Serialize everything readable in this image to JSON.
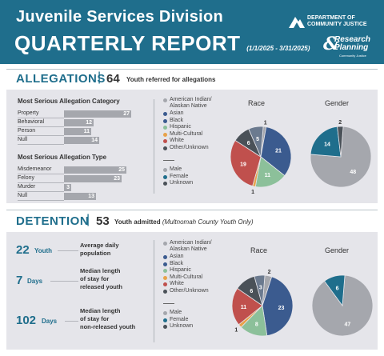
{
  "header": {
    "division": "Juvenile Services Division",
    "report": "QUARTERLY REPORT",
    "dates": "(1/1/2025 - 3/31/2025)",
    "doj_line1": "DEPARTMENT OF",
    "doj_line2": "COMMUNITY JUSTICE",
    "rp_line1": "Research",
    "rp_line2": "Planning",
    "rp_sub": "Community Justice",
    "rp_amp": "&",
    "brand_color": "#1f6e8c"
  },
  "allegations": {
    "title": "ALLEGATIONS",
    "sep": "|",
    "count": "64",
    "desc": "Youth referred for allegations",
    "category_head": "Most Serious Allegation Category",
    "type_head": "Most Serious Allegation Type",
    "categories": [
      {
        "label": "Property",
        "value": "27"
      },
      {
        "label": "Behavioral",
        "value": "12"
      },
      {
        "label": "Person",
        "value": "11"
      },
      {
        "label": "Null",
        "value": "14"
      }
    ],
    "types": [
      {
        "label": "Misdemeanor",
        "value": "25"
      },
      {
        "label": "Felony",
        "value": "23"
      },
      {
        "label": "Murder",
        "value": "3"
      },
      {
        "label": "Null",
        "value": "13"
      }
    ],
    "legend_race": [
      "American Indian/ Alaskan Native",
      "Asian",
      "Black",
      "Hispanic",
      "Multi-Cultural",
      "White",
      "Other/Unknown"
    ],
    "legend_gender": [
      "Male",
      "Female",
      "Unknown"
    ],
    "race_title": "Race",
    "gender_title": "Gender",
    "race_labels": [
      "1",
      "21",
      "11",
      "1",
      "19",
      "6",
      "5"
    ],
    "gender_labels": [
      "48",
      "14",
      "2"
    ]
  },
  "detention": {
    "title": "DETENTION",
    "sep": "|",
    "count": "53",
    "desc": "Youth admitted",
    "desc_note": "(Multnomah County Youth Only)",
    "stats": [
      {
        "num": "22",
        "unit": "Youth",
        "label1": "Average daily",
        "label2": "population",
        "label3": ""
      },
      {
        "num": "7",
        "unit": "Days",
        "label1": "Median length",
        "label2": "of stay for",
        "label3": "released youth"
      },
      {
        "num": "102",
        "unit": "Days",
        "label1": "Median length",
        "label2": "of stay for",
        "label3": "non-released youth"
      }
    ],
    "legend_race": [
      "American Indian/ Alaskan Native",
      "Asian",
      "Black",
      "Hispanic",
      "Multi-Cultural",
      "White",
      "Other/Unknown"
    ],
    "legend_gender": [
      "Male",
      "Female",
      "Unknown"
    ],
    "race_title": "Race",
    "gender_title": "Gender",
    "race_labels": [
      "2",
      "23",
      "8",
      "1",
      "11",
      "6",
      "3"
    ],
    "gender_labels": [
      "47",
      "6"
    ]
  },
  "legend_colors": {
    "race": [
      "#a5a7ad",
      "#3b5b8f",
      "#3b5b8f",
      "#8cc09a",
      "#e8a24a",
      "#c0504d",
      "#4a5158"
    ],
    "gender": [
      "#a5a7ad",
      "#1f6e8c",
      "#4a5158"
    ]
  },
  "chart_data": [
    {
      "type": "bar",
      "title": "Most Serious Allegation Category",
      "categories": [
        "Property",
        "Behavioral",
        "Person",
        "Null"
      ],
      "values": [
        27,
        12,
        11,
        14
      ]
    },
    {
      "type": "bar",
      "title": "Most Serious Allegation Type",
      "categories": [
        "Misdemeanor",
        "Felony",
        "Murder",
        "Null"
      ],
      "values": [
        25,
        23,
        3,
        13
      ]
    },
    {
      "type": "pie",
      "title": "Race",
      "categories": [
        "American Indian/ Alaskan Native",
        "Black",
        "Hispanic",
        "Multi-Cultural",
        "White",
        "Other/Unknown",
        "Asian"
      ],
      "values": [
        1,
        21,
        11,
        1,
        19,
        6,
        5
      ],
      "colors": [
        "#a5a7ad",
        "#3b5b8f",
        "#8cc09a",
        "#e8a24a",
        "#c0504d",
        "#4a5158",
        "#6b7a8f"
      ]
    },
    {
      "type": "pie",
      "title": "Gender",
      "categories": [
        "Male",
        "Female",
        "Unknown"
      ],
      "values": [
        48,
        14,
        2
      ],
      "colors": [
        "#a5a7ad",
        "#1f6e8c",
        "#4a5158"
      ]
    },
    {
      "type": "pie",
      "title": "Race",
      "categories": [
        "American Indian/ Alaskan Native",
        "Black",
        "Hispanic",
        "Multi-Cultural",
        "White",
        "Other/Unknown",
        "Asian"
      ],
      "values": [
        2,
        23,
        8,
        1,
        11,
        6,
        3
      ],
      "colors": [
        "#a5a7ad",
        "#3b5b8f",
        "#8cc09a",
        "#e8a24a",
        "#c0504d",
        "#4a5158",
        "#6b7a8f"
      ]
    },
    {
      "type": "pie",
      "title": "Gender",
      "categories": [
        "Male",
        "Female"
      ],
      "values": [
        47,
        6
      ],
      "colors": [
        "#a5a7ad",
        "#1f6e8c"
      ]
    }
  ]
}
